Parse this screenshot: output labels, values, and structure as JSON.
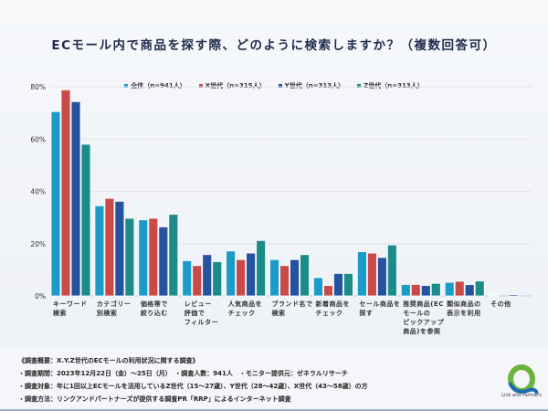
{
  "chart_data": {
    "type": "bar",
    "title": "ECモール内で商品を探す際、どのように検索しますか？（複数回答可）",
    "categories": [
      "キーワード\n検索",
      "カテゴリー\n別検索",
      "価格帯で\n絞り込む",
      "レビュー\n評価で\nフィルター",
      "人気商品を\nチェック",
      "ブランド名で\n検索",
      "新着商品を\nチェック",
      "セール商品を\n探す",
      "推奨商品(EC\nモールの\nピックアップ\n商品)を参照",
      "類似商品の\n表示を利用",
      "その他"
    ],
    "series": [
      {
        "name": "全体（n=941人）",
        "color": "#1a9bc8",
        "values": [
          70.5,
          34.5,
          29.1,
          13.5,
          17.2,
          13.9,
          7.0,
          16.9,
          4.4,
          5.2,
          0.3
        ]
      },
      {
        "name": "X世代（n=315人）",
        "color": "#c94b49",
        "values": [
          78.8,
          37.3,
          29.7,
          11.6,
          13.9,
          11.6,
          4.0,
          16.4,
          4.4,
          5.6,
          0.0
        ]
      },
      {
        "name": "Y世代（n=313人）",
        "color": "#2553a0",
        "values": [
          74.3,
          36.2,
          26.4,
          15.8,
          16.4,
          13.9,
          8.6,
          14.7,
          4.0,
          4.3,
          0.5
        ]
      },
      {
        "name": "Z世代（n=313人）",
        "color": "#1c8c88",
        "values": [
          58.0,
          29.7,
          31.2,
          13.1,
          21.2,
          15.8,
          8.6,
          19.5,
          4.8,
          5.7,
          0.0
        ]
      }
    ],
    "ylim": [
      0,
      80
    ],
    "yticks": [
      "0%",
      "20%",
      "40%",
      "60%",
      "80%"
    ],
    "grid": true,
    "legend": "top-center"
  },
  "footer": {
    "lines": [
      "《調査概要：X.Y.Z世代のECモールの利用状況に関する調査》",
      "・調査期間：2023年12月22日（金）～25日（月）　・調査人数：941人　・モニター提供元：ゼネラルリサーチ",
      "・調査対象：年に1回以上ECモールを活用しているZ世代（15～27歳）、Y世代（28～42歳）、X世代（43～58歳）の方",
      "・調査方法：リンクアンドパートナーズが提供する調査PR「RRP」によるインターネット調査"
    ],
    "logo_text": "Link and Partners"
  }
}
